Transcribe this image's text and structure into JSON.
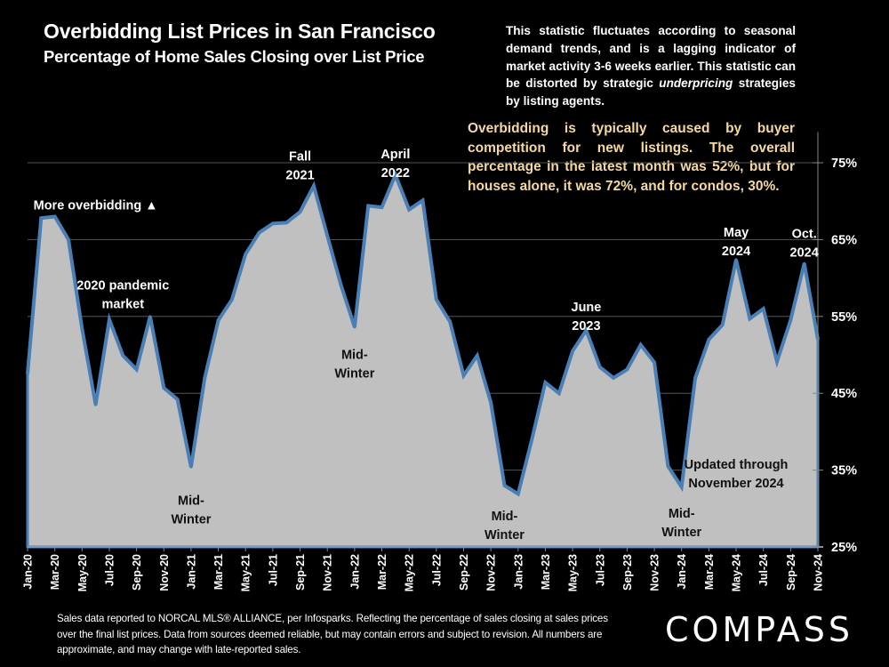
{
  "header": {
    "title": "Overbidding List Prices in San Francisco",
    "subtitle": "Percentage of Home Sales Closing over List Price"
  },
  "notes": {
    "white_part1": "This statistic fluctuates according to seasonal demand trends, and is a lagging indicator of market activity 3-6 weeks earlier. This statistic can be distorted by strategic ",
    "white_italic": "underpricing",
    "white_part2": " strategies by listing agents.",
    "gold": "Overbidding is typically caused by buyer competition for new listings. The overall percentage in the latest month was 52%, but for houses alone, it was 72%, and for condos, 30%."
  },
  "footer": {
    "disclaimer": "Sales data reported to NORCAL MLS® ALLIANCE, per Infosparks. Reflecting the percentage of sales closing at sales prices over the final list prices. Data from sources deemed reliable, but may contain errors and subject to revision. All numbers are approximate, and may change with late-reported sales.",
    "logo": "COMPASS"
  },
  "colors": {
    "background": "#000000",
    "area_fill": "#c0c0c0",
    "line": "#4a7fb5",
    "gold_text": "#f5d9a0",
    "gridline": "#555555"
  },
  "chart_data": {
    "type": "area",
    "title": "Overbidding List Prices in San Francisco",
    "subtitle": "Percentage of Home Sales Closing over List Price",
    "xlabel": "",
    "ylabel": "",
    "y_axis_side": "right",
    "ylim": [
      25,
      80
    ],
    "yticks": [
      25,
      35,
      45,
      55,
      65,
      75
    ],
    "ytick_labels": [
      "25%",
      "35%",
      "45%",
      "55%",
      "65%",
      "75%"
    ],
    "grid": true,
    "x": [
      "Jan-20",
      "Feb-20",
      "Mar-20",
      "Apr-20",
      "May-20",
      "Jun-20",
      "Jul-20",
      "Aug-20",
      "Sep-20",
      "Oct-20",
      "Nov-20",
      "Dec-20",
      "Jan-21",
      "Feb-21",
      "Mar-21",
      "Apr-21",
      "May-21",
      "Jun-21",
      "Jul-21",
      "Aug-21",
      "Sep-21",
      "Oct-21",
      "Nov-21",
      "Dec-21",
      "Jan-22",
      "Feb-22",
      "Mar-22",
      "Apr-22",
      "May-22",
      "Jun-22",
      "Jul-22",
      "Aug-22",
      "Sep-22",
      "Oct-22",
      "Nov-22",
      "Dec-22",
      "Jan-23",
      "Feb-23",
      "Mar-23",
      "Apr-23",
      "May-23",
      "Jun-23",
      "Jul-23",
      "Aug-23",
      "Sep-23",
      "Oct-23",
      "Nov-23",
      "Dec-23",
      "Jan-24",
      "Feb-24",
      "Mar-24",
      "Apr-24",
      "May-24",
      "Jun-24",
      "Jul-24",
      "Aug-24",
      "Sep-24",
      "Oct-24",
      "Nov-24"
    ],
    "xtick_labels": [
      "Jan-20",
      "Mar-20",
      "May-20",
      "Jul-20",
      "Sep-20",
      "Nov-20",
      "Jan-21",
      "Mar-21",
      "May-21",
      "Jul-21",
      "Sep-21",
      "Nov-21",
      "Jan-22",
      "Mar-22",
      "May-22",
      "Jul-22",
      "Sep-22",
      "Nov-22",
      "Jan-23",
      "Mar-23",
      "May-23",
      "Jul-23",
      "Sep-23",
      "Nov-23",
      "Jan-24",
      "Mar-24",
      "May-24",
      "Jul-24",
      "Sep-24",
      "Nov-24"
    ],
    "series": [
      {
        "name": "Percentage of Home Sales Closing over List Price",
        "values": [
          47.5,
          67.8,
          68.0,
          65.0,
          53.4,
          43.5,
          54.6,
          49.9,
          48.1,
          55.0,
          45.7,
          44.2,
          35.4,
          47.0,
          54.5,
          57.2,
          63.1,
          65.9,
          67.1,
          67.2,
          68.6,
          72.0,
          65.5,
          59.1,
          53.6,
          69.4,
          69.2,
          73.4,
          68.9,
          70.1,
          57.2,
          54.3,
          47.3,
          49.9,
          43.8,
          33.0,
          31.9,
          38.9,
          46.4,
          45.0,
          50.5,
          53.2,
          48.4,
          47.0,
          48.1,
          51.3,
          49.0,
          35.5,
          32.8,
          47.0,
          52.0,
          53.9,
          62.4,
          54.7,
          56.0,
          49.1,
          54.5,
          61.9,
          52.0
        ]
      }
    ],
    "annotations": [
      {
        "id": "more-overbidding",
        "lines": [
          "More overbidding ▲"
        ],
        "style": "light",
        "month": "Jun-20",
        "value": 68.9
      },
      {
        "id": "pandemic-2020",
        "lines": [
          "2020 pandemic",
          "market"
        ],
        "style": "light",
        "month": "Aug-20",
        "value": 58.5
      },
      {
        "id": "midwinter-2021",
        "lines": [
          "Mid-",
          "Winter"
        ],
        "style": "dark",
        "month": "Jan-21",
        "value": 30.5
      },
      {
        "id": "fall-2021",
        "lines": [
          "Fall",
          "2021"
        ],
        "style": "light",
        "month": "Sep-21",
        "value": 75.3
      },
      {
        "id": "april-2022",
        "lines": [
          "April",
          "2022"
        ],
        "style": "light",
        "month": "Apr-22",
        "value": 75.6
      },
      {
        "id": "midwinter-2022",
        "lines": [
          "Mid-",
          "Winter"
        ],
        "style": "dark",
        "month": "Jan-22",
        "value": 49.5
      },
      {
        "id": "june-2023",
        "lines": [
          "June",
          "2023"
        ],
        "style": "light",
        "month": "Jun-23",
        "value": 55.7
      },
      {
        "id": "midwinter-2023",
        "lines": [
          "Mid-",
          "Winter"
        ],
        "style": "dark",
        "month": "Dec-22",
        "value": 28.5
      },
      {
        "id": "may-2024",
        "lines": [
          "May",
          "2024"
        ],
        "style": "light",
        "month": "May-24",
        "value": 65.4
      },
      {
        "id": "oct-2024",
        "lines": [
          "Oct.",
          "2024"
        ],
        "style": "light",
        "month": "Oct-24",
        "value": 65.2
      },
      {
        "id": "midwinter-2024",
        "lines": [
          "Mid-",
          "Winter"
        ],
        "style": "dark",
        "month": "Jan-24",
        "value": 28.8
      },
      {
        "id": "updated-through",
        "lines": [
          "Updated through",
          "November 2024"
        ],
        "style": "dark",
        "month": "May-24",
        "value": 35.2
      }
    ]
  }
}
